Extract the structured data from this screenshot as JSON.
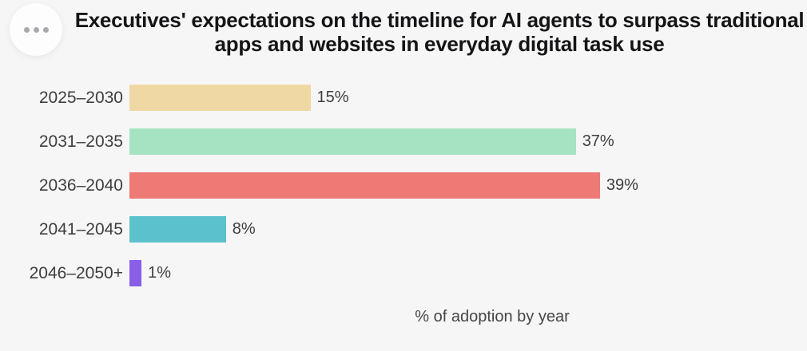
{
  "title": "Executives' expectations on the timeline for AI agents to surpass traditional apps and websites in everyday digital task use",
  "menu": {
    "icon": "ellipsis-icon"
  },
  "chart_data": {
    "type": "bar",
    "orientation": "horizontal",
    "title": "Executives' expectations on the timeline for AI agents to surpass traditional apps and websites in everyday digital task use",
    "categories": [
      "2025–2030",
      "2031–2035",
      "2036–2040",
      "2041–2045",
      "2046–2050+"
    ],
    "values": [
      15,
      37,
      39,
      8,
      1
    ],
    "value_labels": [
      "15%",
      "37%",
      "39%",
      "8%",
      "1%"
    ],
    "bar_colors": [
      "#efd8a4",
      "#a5e3c2",
      "#ed7a74",
      "#5bc2cc",
      "#8a5fe8"
    ],
    "xlabel": "% of adoption by year",
    "ylabel": "",
    "grid": false,
    "legend": false
  },
  "colors": {
    "background": "#f6f6f7",
    "title_text": "#151517",
    "label_text": "#3e3e40",
    "axis_label_text": "#454547",
    "menu_button_bg": "#fdfdfd",
    "menu_dots": "#a9a9ad"
  }
}
